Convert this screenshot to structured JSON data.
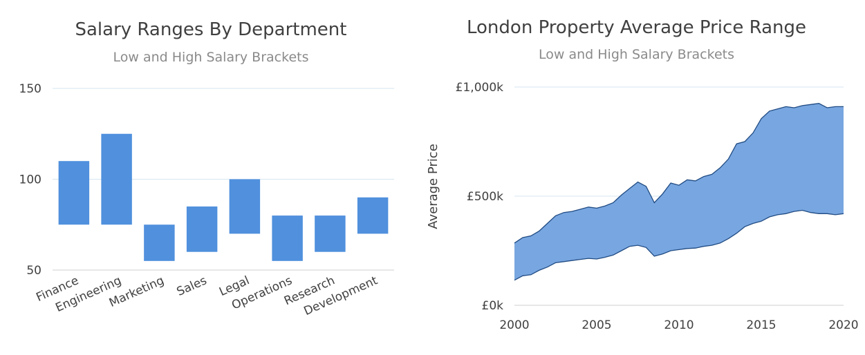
{
  "colors": {
    "bar": "#5090dd",
    "area_fill": "#78a6e0",
    "area_line": "#1f4a82",
    "grid": "#d6e6f0",
    "axis": "#cfcfcf",
    "text": "#404040",
    "subtitle": "#8a8a8a"
  },
  "chart_data": [
    {
      "type": "bar",
      "subtype": "floating-range",
      "title": "Salary Ranges By Department",
      "subtitle": "Low and High Salary Brackets",
      "xlabel": "",
      "ylabel": "",
      "categories": [
        "Finance",
        "Engineering",
        "Marketing",
        "Sales",
        "Legal",
        "Operations",
        "Research",
        "Development"
      ],
      "low": [
        75,
        75,
        55,
        60,
        70,
        55,
        60,
        70
      ],
      "high": [
        110,
        125,
        75,
        85,
        100,
        80,
        80,
        90
      ],
      "ylim": [
        50,
        150
      ],
      "yticks": [
        50,
        100,
        150
      ],
      "ytick_labels": [
        "50",
        "100",
        "150"
      ],
      "grid": true,
      "legend": "none"
    },
    {
      "type": "area",
      "subtype": "range",
      "title": "London Property Average Price Range",
      "subtitle": "Low and High Salary Brackets",
      "xlabel": "",
      "ylabel": "Average Price",
      "xlim": [
        2000,
        2020
      ],
      "xticks": [
        2000,
        2005,
        2010,
        2015,
        2020
      ],
      "xtick_labels": [
        "2000",
        "2005",
        "2010",
        "2015",
        "2020"
      ],
      "ylim": [
        0,
        1000
      ],
      "yticks": [
        0,
        500,
        1000
      ],
      "ytick_labels": [
        "£0k",
        "£500k",
        "£1,000k"
      ],
      "y_unit": "£k",
      "grid": true,
      "legend": "none",
      "series": [
        {
          "role": "high",
          "x": [
            2000,
            2000.5,
            2001,
            2001.5,
            2002,
            2002.5,
            2003,
            2003.5,
            2004,
            2004.5,
            2005,
            2005.5,
            2006,
            2006.5,
            2007,
            2007.5,
            2008,
            2008.5,
            2009,
            2009.5,
            2010,
            2010.5,
            2011,
            2011.5,
            2012,
            2012.5,
            2013,
            2013.5,
            2014,
            2014.5,
            2015,
            2015.5,
            2016,
            2016.5,
            2017,
            2017.5,
            2018,
            2018.5,
            2019,
            2019.5,
            2020
          ],
          "y": [
            285,
            310,
            318,
            340,
            375,
            410,
            425,
            430,
            440,
            450,
            445,
            455,
            470,
            505,
            535,
            565,
            545,
            470,
            510,
            560,
            550,
            575,
            570,
            590,
            600,
            630,
            670,
            740,
            750,
            790,
            855,
            890,
            900,
            910,
            905,
            915,
            920,
            925,
            905,
            910,
            910
          ]
        },
        {
          "role": "low",
          "x": [
            2000,
            2000.5,
            2001,
            2001.5,
            2002,
            2002.5,
            2003,
            2003.5,
            2004,
            2004.5,
            2005,
            2005.5,
            2006,
            2006.5,
            2007,
            2007.5,
            2008,
            2008.5,
            2009,
            2009.5,
            2010,
            2010.5,
            2011,
            2011.5,
            2012,
            2012.5,
            2013,
            2013.5,
            2014,
            2014.5,
            2015,
            2015.5,
            2016,
            2016.5,
            2017,
            2017.5,
            2018,
            2018.5,
            2019,
            2019.5,
            2020
          ],
          "y": [
            115,
            135,
            140,
            160,
            175,
            195,
            200,
            205,
            210,
            215,
            212,
            220,
            230,
            250,
            270,
            275,
            265,
            225,
            235,
            250,
            255,
            260,
            262,
            270,
            275,
            285,
            305,
            330,
            360,
            375,
            385,
            405,
            415,
            420,
            430,
            435,
            425,
            420,
            420,
            415,
            420
          ]
        }
      ]
    }
  ]
}
